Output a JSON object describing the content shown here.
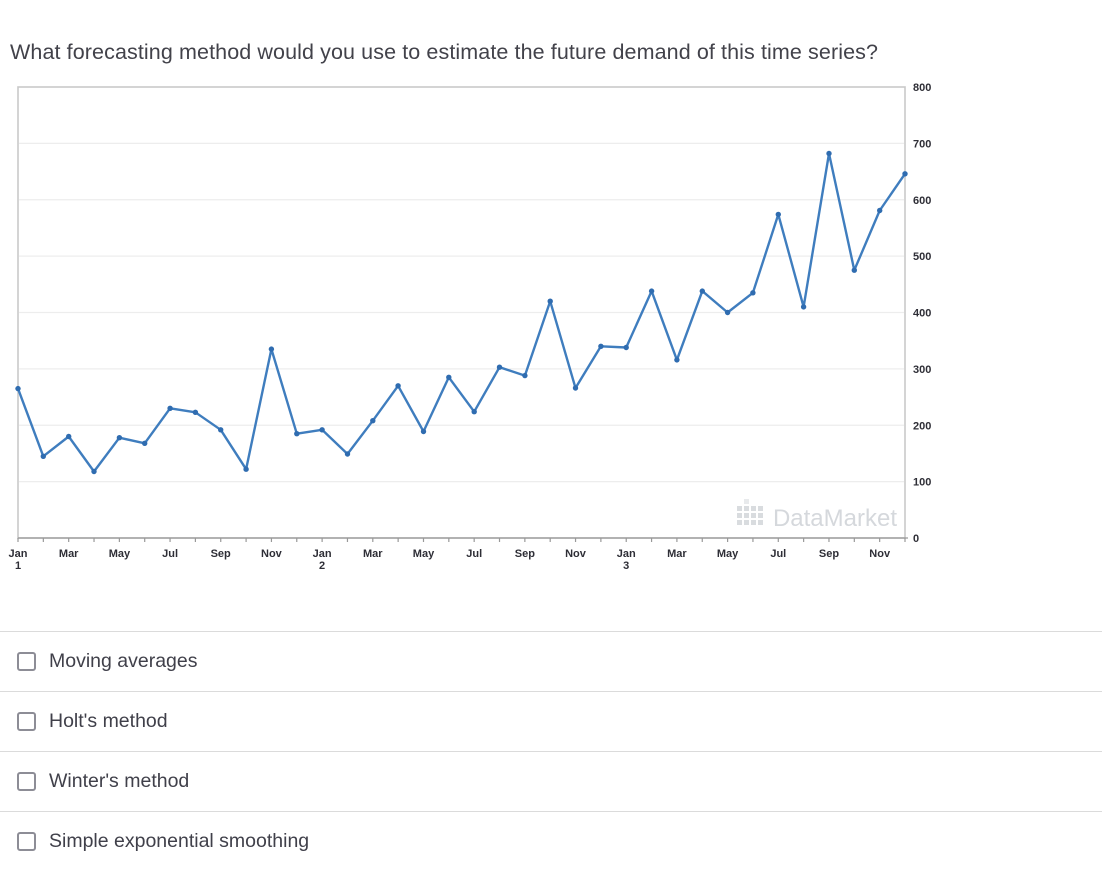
{
  "page": {
    "title": "What forecasting method would you use to estimate the future demand of this time series?"
  },
  "chart_data": {
    "type": "line",
    "title": "",
    "xlabel": "",
    "ylabel": "",
    "n_points": 36,
    "x_unit": "month",
    "x_labels": [
      {
        "pos": 0,
        "text": "Jan",
        "year": "1"
      },
      {
        "pos": 2,
        "text": "Mar"
      },
      {
        "pos": 4,
        "text": "May"
      },
      {
        "pos": 6,
        "text": "Jul"
      },
      {
        "pos": 8,
        "text": "Sep"
      },
      {
        "pos": 10,
        "text": "Nov"
      },
      {
        "pos": 12,
        "text": "Jan",
        "year": "2"
      },
      {
        "pos": 14,
        "text": "Mar"
      },
      {
        "pos": 16,
        "text": "May"
      },
      {
        "pos": 18,
        "text": "Jul"
      },
      {
        "pos": 20,
        "text": "Sep"
      },
      {
        "pos": 22,
        "text": "Nov"
      },
      {
        "pos": 24,
        "text": "Jan",
        "year": "3"
      },
      {
        "pos": 26,
        "text": "Mar"
      },
      {
        "pos": 28,
        "text": "May"
      },
      {
        "pos": 30,
        "text": "Jul"
      },
      {
        "pos": 32,
        "text": "Sep"
      },
      {
        "pos": 34,
        "text": "Nov"
      }
    ],
    "values": [
      265,
      145,
      180,
      118,
      178,
      168,
      230,
      223,
      192,
      122,
      335,
      185,
      192,
      149,
      208,
      270,
      189,
      285,
      224,
      303,
      288,
      420,
      266,
      340,
      338,
      438,
      316,
      438,
      400,
      435,
      574,
      410,
      682,
      475,
      581,
      646
    ],
    "ylim": [
      0,
      800
    ],
    "y_ticks": [
      0,
      100,
      200,
      300,
      400,
      500,
      600,
      700,
      800
    ],
    "grid": "horizontal",
    "legend": "none",
    "line_color": "#3f7dbe",
    "marker_color": "#2f6cb0",
    "grid_color": "#ededed",
    "border_color": "#c9c9c9",
    "axis_color": "#999999",
    "tick_label_color": "#2e2e36",
    "watermark": "DataMarket",
    "watermark_color": "#d5d8dc"
  },
  "options": [
    {
      "label": "Moving averages",
      "checked": false
    },
    {
      "label": "Holt's method",
      "checked": false
    },
    {
      "label": "Winter's method",
      "checked": false
    },
    {
      "label": "Simple exponential smoothing",
      "checked": false
    }
  ]
}
